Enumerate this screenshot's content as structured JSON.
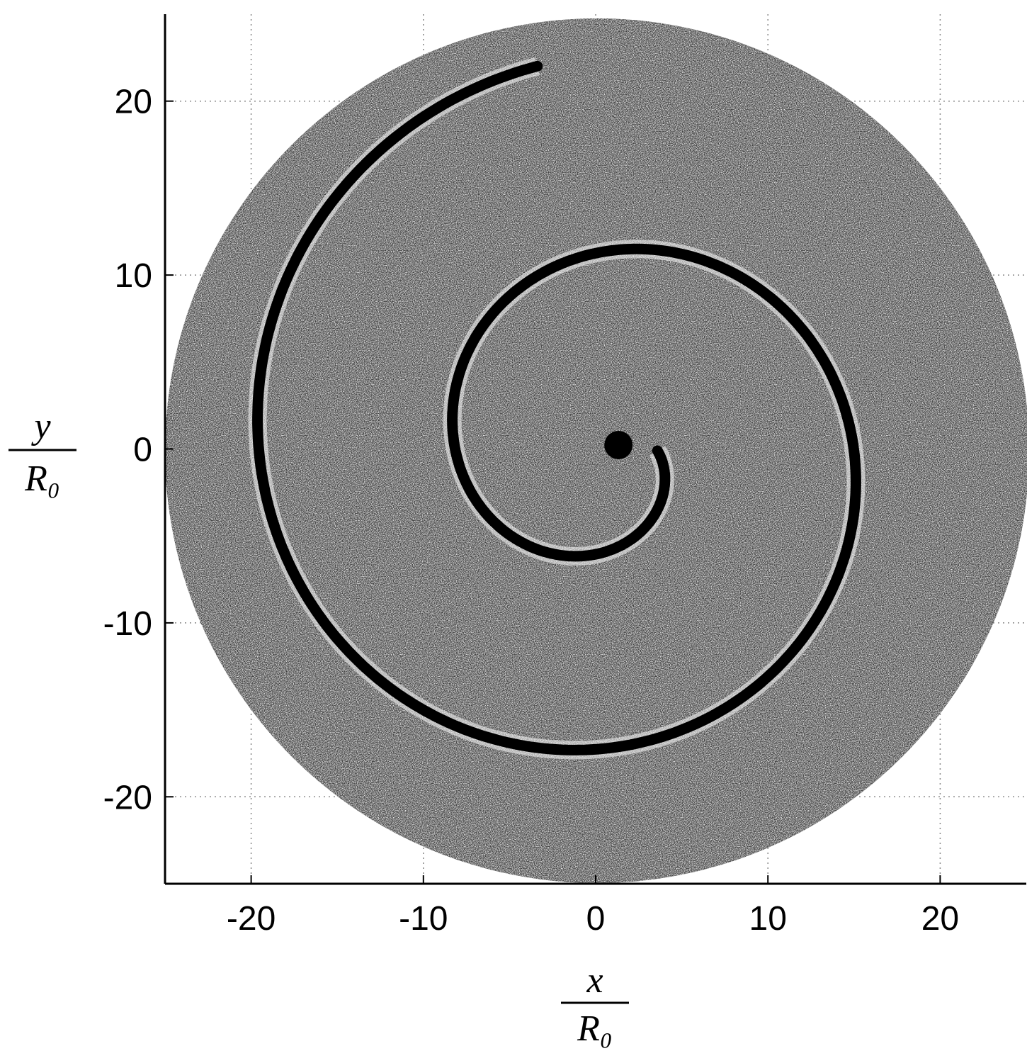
{
  "chart_data": {
    "type": "spiral-field",
    "xlabel_numerator": "x",
    "xlabel_denominator": "R₀",
    "ylabel_numerator": "y",
    "ylabel_denominator": "R₀",
    "xlim": [
      -25,
      25
    ],
    "ylim": [
      -25,
      25
    ],
    "xticks": [
      -20,
      -10,
      0,
      10,
      20
    ],
    "yticks": [
      -20,
      -10,
      0,
      10,
      20
    ],
    "grid": true
  }
}
